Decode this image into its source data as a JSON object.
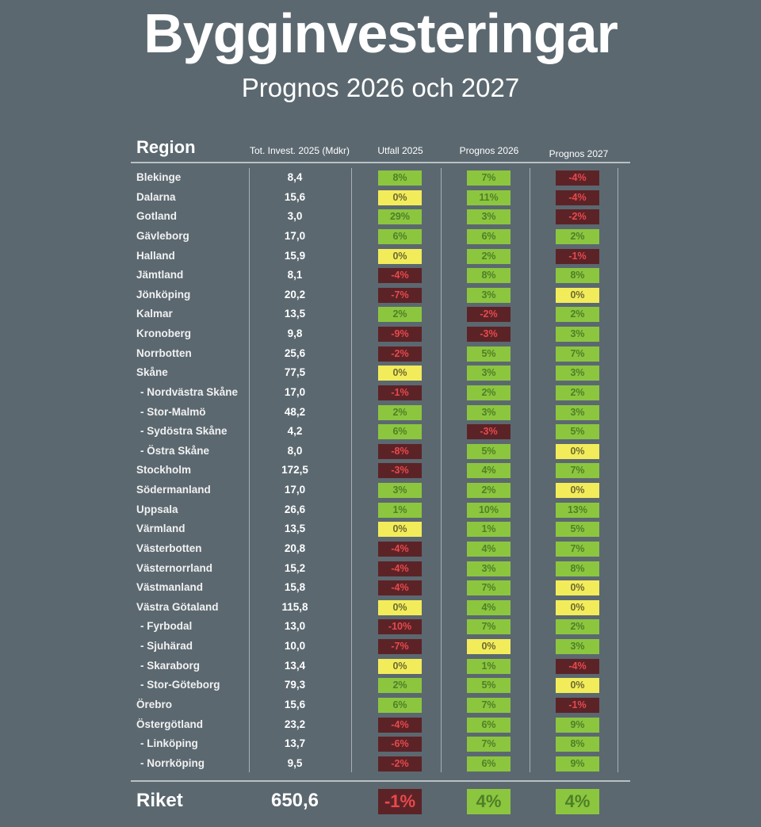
{
  "title": "Bygginvesteringar",
  "subtitle": "Prognos 2026 och 2027",
  "chart_data": {
    "type": "table",
    "columns": [
      "Region",
      "Tot. Invest. 2025 (Mdkr)",
      "Utfall 2025",
      "Prognos 2026",
      "Prognos 2027"
    ],
    "rows": [
      {
        "region": "Blekinge",
        "tot": "8,4",
        "u25": "8%",
        "p26": "7%",
        "p27": "-4%"
      },
      {
        "region": "Dalarna",
        "tot": "15,6",
        "u25": "0%",
        "p26": "11%",
        "p27": "-4%"
      },
      {
        "region": "Gotland",
        "tot": "3,0",
        "u25": "29%",
        "p26": "3%",
        "p27": "-2%"
      },
      {
        "region": "Gävleborg",
        "tot": "17,0",
        "u25": "6%",
        "p26": "6%",
        "p27": "2%"
      },
      {
        "region": "Halland",
        "tot": "15,9",
        "u25": "0%",
        "p26": "2%",
        "p27": "-1%"
      },
      {
        "region": "Jämtland",
        "tot": "8,1",
        "u25": "-4%",
        "p26": "8%",
        "p27": "8%"
      },
      {
        "region": "Jönköping",
        "tot": "20,2",
        "u25": "-7%",
        "p26": "3%",
        "p27": "0%"
      },
      {
        "region": "Kalmar",
        "tot": "13,5",
        "u25": "2%",
        "p26": "-2%",
        "p27": "2%"
      },
      {
        "region": "Kronoberg",
        "tot": "9,8",
        "u25": "-9%",
        "p26": "-3%",
        "p27": "3%"
      },
      {
        "region": "Norrbotten",
        "tot": "25,6",
        "u25": "-2%",
        "p26": "5%",
        "p27": "7%"
      },
      {
        "region": "Skåne",
        "tot": "77,5",
        "u25": "0%",
        "p26": "3%",
        "p27": "3%"
      },
      {
        "region": "- Nordvästra Skåne",
        "tot": "17,0",
        "u25": "-1%",
        "p26": "2%",
        "p27": "2%"
      },
      {
        "region": "- Stor-Malmö",
        "tot": "48,2",
        "u25": "2%",
        "p26": "3%",
        "p27": "3%"
      },
      {
        "region": "- Sydöstra Skåne",
        "tot": "4,2",
        "u25": "6%",
        "p26": "-3%",
        "p27": "5%"
      },
      {
        "region": "- Östra Skåne",
        "tot": "8,0",
        "u25": "-8%",
        "p26": "5%",
        "p27": "0%"
      },
      {
        "region": "Stockholm",
        "tot": "172,5",
        "u25": "-3%",
        "p26": "4%",
        "p27": "7%"
      },
      {
        "region": "Södermanland",
        "tot": "17,0",
        "u25": "3%",
        "p26": "2%",
        "p27": "0%"
      },
      {
        "region": "Uppsala",
        "tot": "26,6",
        "u25": "1%",
        "p26": "10%",
        "p27": "13%"
      },
      {
        "region": "Värmland",
        "tot": "13,5",
        "u25": "0%",
        "p26": "1%",
        "p27": "5%"
      },
      {
        "region": "Västerbotten",
        "tot": "20,8",
        "u25": "-4%",
        "p26": "4%",
        "p27": "7%"
      },
      {
        "region": "Västernorrland",
        "tot": "15,2",
        "u25": "-4%",
        "p26": "3%",
        "p27": "8%"
      },
      {
        "region": "Västmanland",
        "tot": "15,8",
        "u25": "-4%",
        "p26": "7%",
        "p27": "0%"
      },
      {
        "region": "Västra Götaland",
        "tot": "115,8",
        "u25": "0%",
        "p26": "4%",
        "p27": "0%"
      },
      {
        "region": "- Fyrbodal",
        "tot": "13,0",
        "u25": "-10%",
        "p26": "7%",
        "p27": "2%"
      },
      {
        "region": "- Sjuhärad",
        "tot": "10,0",
        "u25": "-7%",
        "p26": "0%",
        "p27": "3%"
      },
      {
        "region": "- Skaraborg",
        "tot": "13,4",
        "u25": "0%",
        "p26": "1%",
        "p27": "-4%"
      },
      {
        "region": "- Stor-Göteborg",
        "tot": "79,3",
        "u25": "2%",
        "p26": "5%",
        "p27": "0%"
      },
      {
        "region": "Örebro",
        "tot": "15,6",
        "u25": "6%",
        "p26": "7%",
        "p27": "-1%"
      },
      {
        "region": "Östergötland",
        "tot": "23,2",
        "u25": "-4%",
        "p26": "6%",
        "p27": "9%"
      },
      {
        "region": "- Linköping",
        "tot": "13,7",
        "u25": "-6%",
        "p26": "7%",
        "p27": "8%"
      },
      {
        "region": "- Norrköping",
        "tot": "9,5",
        "u25": "-2%",
        "p26": "6%",
        "p27": "9%"
      }
    ],
    "total": {
      "region": "Riket",
      "tot": "650,6",
      "u25": "-1%",
      "p26": "4%",
      "p27": "4%"
    },
    "colors": {
      "positive": "#8cc63f",
      "zero": "#f2ec5a",
      "negative": "#5c2327",
      "negative_text": "#e8494c"
    }
  }
}
